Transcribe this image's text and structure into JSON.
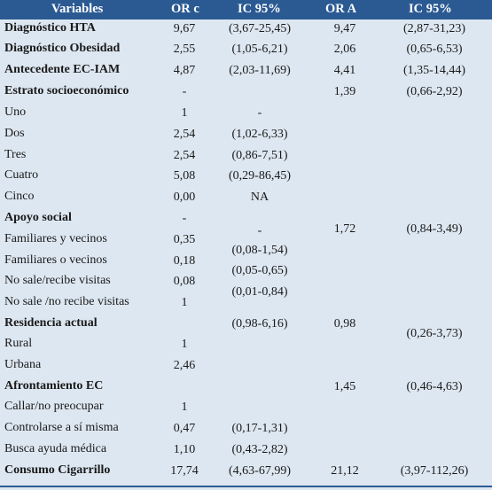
{
  "headers": [
    "Variables",
    "OR c",
    "IC 95%",
    "OR A",
    "IC 95%"
  ],
  "rows": [
    {
      "label": "Diagnóstico HTA",
      "bold": true,
      "orc": "9,67",
      "icc": "(3,67-25,45)",
      "ora": "9,47",
      "ica": "(2,87-31,23)"
    },
    {
      "label": "Diagnóstico Obesidad",
      "bold": true,
      "orc": "2,55",
      "icc": "(1,05-6,21)",
      "ora": "2,06",
      "ica": "(0,65-6,53)"
    },
    {
      "label": "Antecedente EC-IAM",
      "bold": true,
      "orc": "4,87",
      "icc": "(2,03-11,69)",
      "ora": "4,41",
      "ica": "(1,35-14,44)"
    },
    {
      "label": "Estrato socioeconómico",
      "bold": true,
      "orc": "-",
      "icc": "",
      "ora": "1,39",
      "ica": "(0,66-2,92)"
    },
    {
      "label": "Uno",
      "bold": false,
      "orc": "1",
      "icc": "-",
      "ora": "",
      "ica": ""
    },
    {
      "label": "Dos",
      "bold": false,
      "orc": "2,54",
      "icc": "(1,02-6,33)",
      "ora": "",
      "ica": ""
    },
    {
      "label": "Tres",
      "bold": false,
      "orc": "2,54",
      "icc": "(0,86-7,51)",
      "ora": "",
      "ica": ""
    },
    {
      "label": "Cuatro",
      "bold": false,
      "orc": "5,08",
      "icc": "(0,29-86,45)",
      "ora": "",
      "ica": ""
    },
    {
      "label": "Cinco",
      "bold": false,
      "orc": "0,00",
      "icc": "NA",
      "ora": "",
      "ica": ""
    },
    {
      "label": "Apoyo social",
      "bold": true,
      "orc": "-",
      "icc": "",
      "ora": "",
      "ica": ""
    },
    {
      "label": "Familiares y vecinos",
      "bold": false,
      "orc": "0,35",
      "icc": "",
      "ora": "",
      "ica": ""
    },
    {
      "label": "Familiares o vecinos",
      "bold": false,
      "orc": "0,18",
      "icc": "",
      "ora": "",
      "ica": ""
    },
    {
      "label": "No sale/recibe visitas",
      "bold": false,
      "orc": "0,08",
      "icc": "",
      "ora": "",
      "ica": ""
    },
    {
      "label": "No sale /no recibe visitas",
      "bold": false,
      "orc": "1",
      "icc": "",
      "ora": "",
      "ica": ""
    },
    {
      "label": "Residencia actual",
      "bold": true,
      "orc": "",
      "icc": "(0,98-6,16)",
      "ora": "0,98",
      "ica": ""
    },
    {
      "label": "Rural",
      "bold": false,
      "orc": "1",
      "icc": "",
      "ora": "",
      "ica": ""
    },
    {
      "label": "Urbana",
      "bold": false,
      "orc": "2,46",
      "icc": "",
      "ora": "",
      "ica": ""
    },
    {
      "label": "Afrontamiento EC",
      "bold": true,
      "orc": "",
      "icc": "",
      "ora": "1,45",
      "ica": ""
    },
    {
      "label": "Callar/no preocupar",
      "bold": false,
      "orc": "1",
      "icc": "",
      "ora": "",
      "ica": ""
    },
    {
      "label": "Controlarse a sí misma",
      "bold": false,
      "orc": "0,47",
      "icc": "(0,17-1,31)",
      "ora": "",
      "ica": ""
    },
    {
      "label": "Busca ayuda médica",
      "bold": false,
      "orc": "1,10",
      "icc": "(0,43-2,82)",
      "ora": "",
      "ica": ""
    },
    {
      "label": "Consumo Cigarrillo",
      "bold": true,
      "orc": "17,74",
      "icc": "(4,63-67,99)",
      "ora": "21,12",
      "ica": "(3,97-112,26)"
    }
  ],
  "floating": {
    "apoyo_dash": "-",
    "apoyo_ora": "1,72",
    "apoyo_ica": "(0,84-3,49)",
    "apoyo_ic1": "(0,08-1,54)",
    "apoyo_ic2": "(0,05-0,65)",
    "apoyo_ic3": "(0,01-0,84)",
    "residencia_ica": "(0,26-3,73)",
    "afrontamiento_ica": "(0,46-4,63)"
  }
}
